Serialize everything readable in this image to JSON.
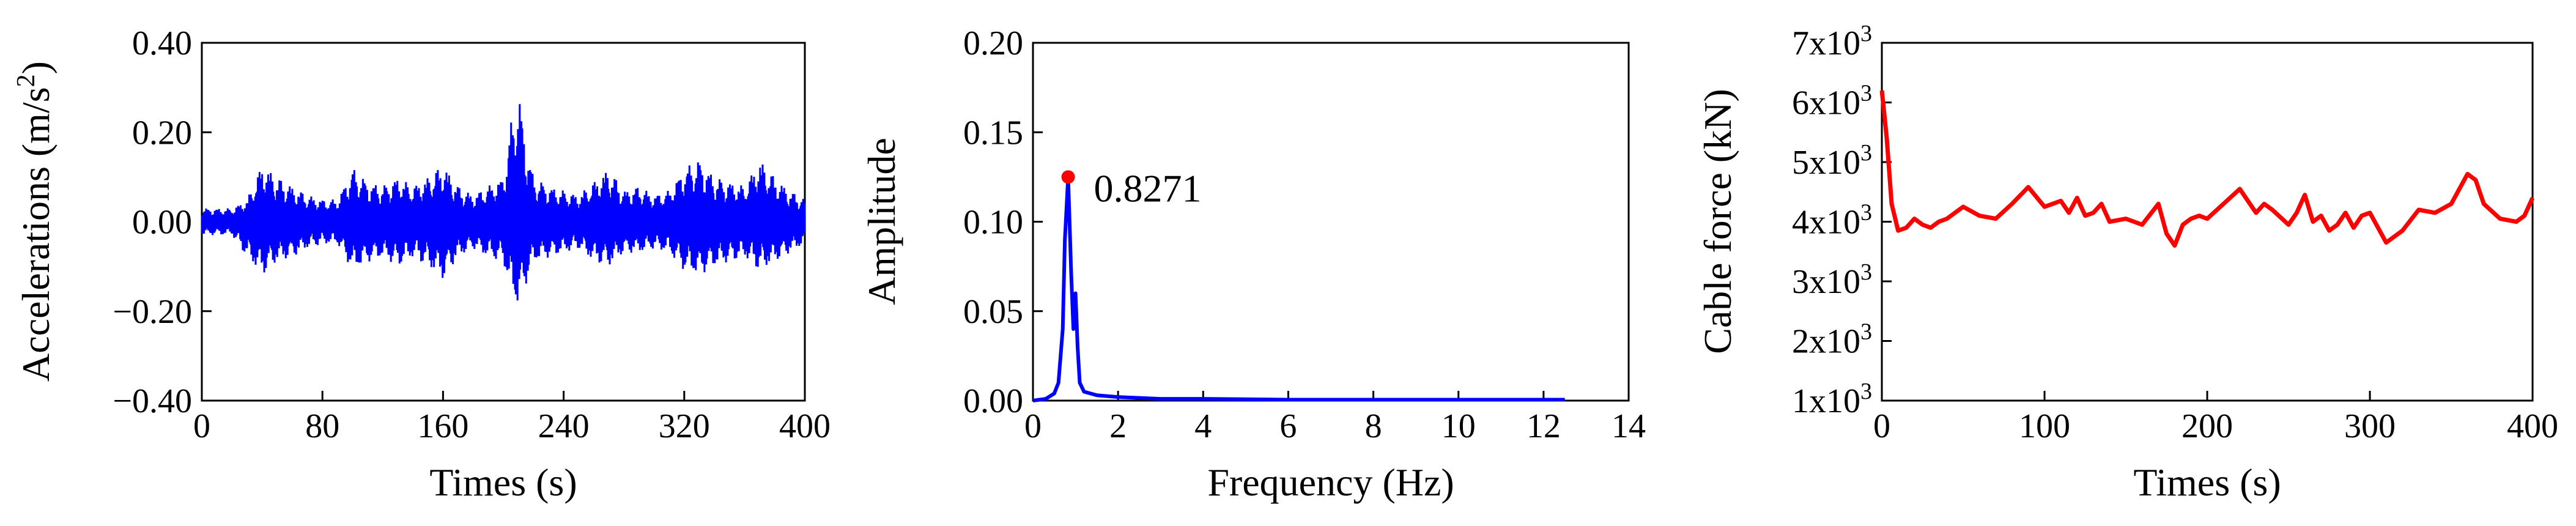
{
  "chart_data": [
    {
      "type": "line",
      "xlabel": "Times (s)",
      "ylabel": "Accelerations (m/s",
      "ylabel_sup": "2",
      "ylabel_close": ")",
      "xlim": [
        0,
        400
      ],
      "ylim": [
        -0.4,
        0.4
      ],
      "x_ticks": [
        0,
        80,
        160,
        240,
        320,
        400
      ],
      "x_tick_labels": [
        "0",
        "80",
        "160",
        "240",
        "320",
        "400"
      ],
      "y_ticks": [
        -0.4,
        -0.2,
        0,
        0.2,
        0.4
      ],
      "y_tick_labels": [
        "−0.40",
        "−0.20",
        "0.00",
        "0.20",
        "0.40"
      ],
      "grid": false,
      "color": "#0000ff",
      "series": [
        {
          "x": [
            0,
            10,
            20,
            30,
            40,
            50,
            60,
            70,
            80,
            90,
            100,
            110,
            120,
            130,
            140,
            150,
            160,
            170,
            180,
            190,
            200,
            205,
            210,
            215,
            220,
            230,
            240,
            250,
            260,
            270,
            280,
            290,
            300,
            310,
            320,
            330,
            340,
            350,
            360,
            370,
            380,
            390,
            400
          ],
          "upper": [
            0.03,
            0.03,
            0.03,
            0.05,
            0.13,
            0.1,
            0.08,
            0.06,
            0.05,
            0.05,
            0.12,
            0.09,
            0.08,
            0.1,
            0.08,
            0.1,
            0.13,
            0.08,
            0.06,
            0.08,
            0.1,
            0.22,
            0.3,
            0.18,
            0.1,
            0.08,
            0.07,
            0.06,
            0.09,
            0.12,
            0.07,
            0.08,
            0.06,
            0.07,
            0.12,
            0.14,
            0.1,
            0.09,
            0.08,
            0.14,
            0.1,
            0.07,
            0.05
          ],
          "lower": [
            -0.03,
            -0.03,
            -0.03,
            -0.08,
            -0.12,
            -0.09,
            -0.08,
            -0.06,
            -0.05,
            -0.05,
            -0.11,
            -0.09,
            -0.08,
            -0.1,
            -0.08,
            -0.1,
            -0.13,
            -0.08,
            -0.06,
            -0.08,
            -0.09,
            -0.16,
            -0.19,
            -0.14,
            -0.09,
            -0.08,
            -0.07,
            -0.06,
            -0.09,
            -0.1,
            -0.07,
            -0.07,
            -0.06,
            -0.07,
            -0.11,
            -0.12,
            -0.1,
            -0.09,
            -0.08,
            -0.11,
            -0.09,
            -0.07,
            -0.05
          ]
        }
      ]
    },
    {
      "type": "line",
      "xlabel": "Frequency (Hz)",
      "ylabel": "Amplitude",
      "xlim": [
        0,
        14
      ],
      "ylim": [
        0,
        0.2
      ],
      "x_ticks": [
        0,
        2,
        4,
        6,
        8,
        10,
        12,
        14
      ],
      "x_tick_labels": [
        "0",
        "2",
        "4",
        "6",
        "8",
        "10",
        "12",
        "14"
      ],
      "y_ticks": [
        0,
        0.05,
        0.1,
        0.15,
        0.2
      ],
      "y_tick_labels": [
        "0.00",
        "0.05",
        "0.10",
        "0.15",
        "0.20"
      ],
      "grid": false,
      "color": "#0000ff",
      "peak": {
        "x": 0.8271,
        "y": 0.125,
        "label": "0.8271",
        "color": "#ff0000"
      },
      "series": [
        {
          "x": [
            0,
            0.3,
            0.5,
            0.6,
            0.7,
            0.75,
            0.8271,
            0.9,
            0.95,
            1.0,
            1.05,
            1.1,
            1.2,
            1.5,
            2,
            3,
            4,
            6,
            8,
            10,
            12,
            12.5
          ],
          "y": [
            0.0,
            0.001,
            0.004,
            0.01,
            0.04,
            0.09,
            0.125,
            0.07,
            0.04,
            0.06,
            0.03,
            0.01,
            0.005,
            0.003,
            0.002,
            0.001,
            0.001,
            0.0005,
            0.0005,
            0.0005,
            0.0005,
            0.0005
          ]
        }
      ]
    },
    {
      "type": "line",
      "xlabel": "Times (s)",
      "ylabel": "Cable force (kN)",
      "xlim": [
        0,
        400
      ],
      "ylim": [
        1000,
        7000
      ],
      "x_ticks": [
        0,
        100,
        200,
        300,
        400
      ],
      "x_tick_labels": [
        "0",
        "100",
        "200",
        "300",
        "400"
      ],
      "y_ticks": [
        1000,
        2000,
        3000,
        4000,
        5000,
        6000,
        7000
      ],
      "y_tick_base": [
        "1x10",
        "2x10",
        "3x10",
        "4x10",
        "5x10",
        "6x10",
        "7x10"
      ],
      "y_tick_exp": "3",
      "grid": false,
      "color": "#ff0000",
      "series": [
        {
          "x": [
            0,
            3,
            6,
            10,
            15,
            20,
            25,
            30,
            35,
            40,
            50,
            60,
            70,
            80,
            90,
            100,
            105,
            110,
            115,
            120,
            125,
            130,
            135,
            140,
            150,
            160,
            170,
            175,
            180,
            185,
            190,
            195,
            200,
            210,
            220,
            230,
            235,
            240,
            250,
            255,
            260,
            265,
            270,
            275,
            280,
            285,
            290,
            295,
            300,
            310,
            320,
            330,
            340,
            350,
            360,
            365,
            370,
            380,
            390,
            395,
            400
          ],
          "y": [
            6200,
            5400,
            4300,
            3850,
            3900,
            4050,
            3950,
            3900,
            4000,
            4050,
            4250,
            4100,
            4050,
            4300,
            4580,
            4250,
            4300,
            4350,
            4150,
            4400,
            4100,
            4150,
            4300,
            4000,
            4050,
            3950,
            4300,
            3800,
            3600,
            3950,
            4050,
            4100,
            4050,
            4300,
            4550,
            4150,
            4300,
            4200,
            3950,
            4150,
            4450,
            4000,
            4100,
            3850,
            3950,
            4150,
            3900,
            4100,
            4150,
            3650,
            3850,
            4200,
            4150,
            4300,
            4800,
            4700,
            4300,
            4050,
            4000,
            4100,
            4400
          ]
        }
      ]
    }
  ]
}
